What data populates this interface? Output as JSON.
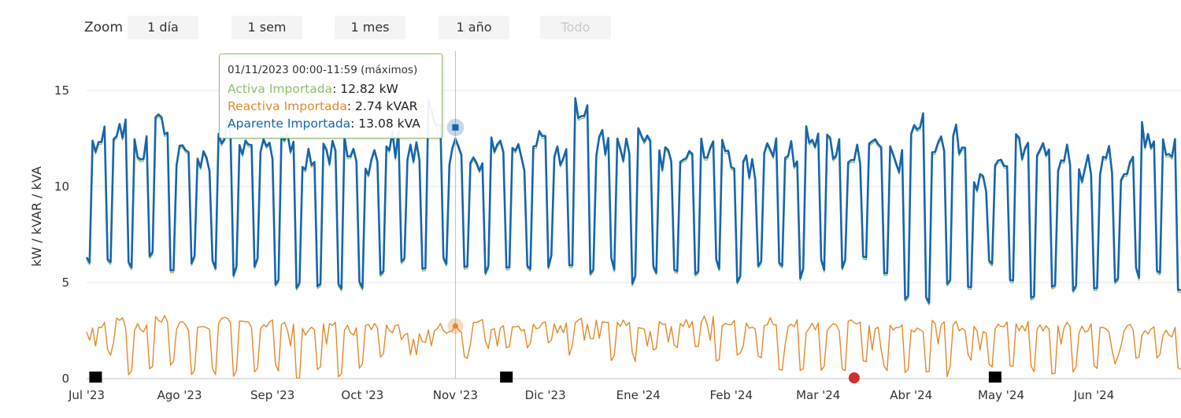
{
  "zoom": {
    "label": "Zoom",
    "buttons": [
      {
        "label": "1 día",
        "enabled": true
      },
      {
        "label": "1 sem",
        "enabled": true
      },
      {
        "label": "1 mes",
        "enabled": true
      },
      {
        "label": "1 año",
        "enabled": true
      },
      {
        "label": "Todo",
        "enabled": false
      }
    ]
  },
  "tooltip": {
    "header": "01/11/2023 00:00-11:59 (máximos)",
    "rows": [
      {
        "name": "Activa Importada",
        "value": ": 12.82 kW"
      },
      {
        "name": "Reactiva Importada",
        "value": ": 2.74 kVAR"
      },
      {
        "name": "Aparente Importada",
        "value": ": 13.08 kVA"
      }
    ]
  },
  "colors": {
    "activa": "#8dc06d",
    "reactiva": "#e08a2a",
    "aparente": "#1565ad",
    "marker_black": "#000000",
    "marker_red": "#d12f2f",
    "grid": "#e6e6e6"
  },
  "chart_data": {
    "type": "line",
    "ylabel": "kW / kVAR / kVA",
    "ylim": [
      0,
      15.5
    ],
    "yticks": [
      0,
      5,
      10,
      15
    ],
    "x_range": [
      "2023-07-01",
      "2024-06-30"
    ],
    "xticks": [
      {
        "label": "Jul '23",
        "date": "2023-07-01"
      },
      {
        "label": "Ago '23",
        "date": "2023-08-01"
      },
      {
        "label": "Sep '23",
        "date": "2023-09-01"
      },
      {
        "label": "Oct '23",
        "date": "2023-10-01"
      },
      {
        "label": "Nov '23",
        "date": "2023-11-01"
      },
      {
        "label": "Dic '23",
        "date": "2023-12-01"
      },
      {
        "label": "Ene '24",
        "date": "2024-01-01"
      },
      {
        "label": "Feb '24",
        "date": "2024-02-01"
      },
      {
        "label": "Mar '24",
        "date": "2024-03-01"
      },
      {
        "label": "Abr '24",
        "date": "2024-04-01"
      },
      {
        "label": "May '24",
        "date": "2024-05-01"
      },
      {
        "label": "Jun '24",
        "date": "2024-06-01"
      }
    ],
    "grid": true,
    "legend": "none",
    "crosshair_date": "2023-11-01",
    "highlight": {
      "date": "2023-11-01",
      "activa": 12.82,
      "reactiva": 2.74,
      "aparente": 13.08
    },
    "series": [
      {
        "key": "aparente",
        "name": "Aparente Importada",
        "unit": "kVA",
        "weekly_peak": [
          13.8,
          14.2,
          13.2,
          14.6,
          12.8,
          12.6,
          14.0,
          13.2,
          12.9,
          13.5,
          12.4,
          13.1,
          13.0,
          12.6,
          13.4,
          13.08,
          14.9,
          12.9,
          12.7,
          13.3,
          12.8,
          13.8,
          12.5,
          15.2,
          13.5,
          13.3,
          13.9,
          12.5,
          12.8,
          13.4,
          12.9,
          12.3,
          13.4,
          12.9,
          14.0,
          13.3,
          12.9,
          13.0,
          12.6,
          14.4,
          13.2,
          13.7,
          11.7,
          12.6,
          13.2,
          13.6,
          12.8,
          12.1,
          12.6,
          12.3,
          13.8,
          13.0,
          12.0
        ],
        "weekly_low": [
          5.8,
          5.5,
          5.6,
          6.0,
          5.3,
          5.6,
          5.5,
          5.3,
          5.5,
          4.9,
          4.3,
          4.4,
          4.2,
          4.5,
          4.9,
          5.9,
          5.4,
          5.5,
          5.3,
          5.4,
          5.5,
          5.3,
          5.7,
          5.8,
          5.3,
          5.5,
          4.7,
          5.3,
          5.3,
          5.1,
          5.5,
          5.0,
          5.3,
          5.4,
          5.2,
          5.5,
          5.5,
          5.7,
          5.1,
          4.1,
          3.6,
          4.5,
          4.6,
          5.6,
          4.9,
          4.2,
          4.2,
          4.3,
          4.6,
          4.7,
          5.2,
          5.4,
          4.4
        ]
      },
      {
        "key": "activa",
        "name": "Activa Importada",
        "unit": "kW",
        "weekly_peak": [
          13.6,
          14.0,
          13.0,
          14.4,
          12.6,
          12.4,
          13.8,
          13.0,
          12.7,
          13.3,
          12.2,
          12.9,
          12.8,
          12.4,
          13.2,
          12.82,
          14.7,
          12.7,
          12.5,
          13.1,
          12.6,
          13.6,
          12.3,
          15.0,
          13.3,
          13.1,
          13.7,
          12.3,
          12.6,
          13.2,
          12.7,
          12.1,
          13.2,
          12.7,
          13.8,
          13.1,
          12.7,
          12.8,
          12.4,
          14.2,
          13.0,
          13.5,
          11.5,
          12.4,
          13.0,
          13.4,
          12.6,
          11.9,
          12.4,
          12.1,
          13.6,
          12.8,
          11.8
        ],
        "weekly_low": [
          5.4,
          5.2,
          5.3,
          5.6,
          5.0,
          5.3,
          5.2,
          5.0,
          5.2,
          4.6,
          4.0,
          4.1,
          3.9,
          4.2,
          4.6,
          5.6,
          5.1,
          5.2,
          5.0,
          5.1,
          5.2,
          5.0,
          5.4,
          5.5,
          5.0,
          5.2,
          4.4,
          5.0,
          5.0,
          4.8,
          5.2,
          4.7,
          5.0,
          5.1,
          4.9,
          5.2,
          5.2,
          5.4,
          4.8,
          3.8,
          3.3,
          4.2,
          4.3,
          5.3,
          4.6,
          3.9,
          3.9,
          4.0,
          4.3,
          4.4,
          4.9,
          5.1,
          4.1
        ]
      },
      {
        "key": "reactiva",
        "name": "Reactiva Importada",
        "unit": "kVAR",
        "weekly_peak": [
          3.2,
          3.4,
          3.1,
          3.5,
          3.2,
          3.3,
          3.4,
          3.2,
          3.3,
          3.2,
          3.0,
          3.3,
          3.0,
          3.2,
          3.1,
          2.74,
          3.2,
          3.1,
          3.3,
          3.2,
          3.0,
          3.2,
          3.1,
          3.5,
          3.6,
          3.3,
          3.2,
          3.4,
          3.3,
          3.5,
          3.3,
          3.2,
          3.4,
          3.3,
          3.1,
          3.2,
          3.5,
          3.0,
          3.2,
          3.1,
          3.3,
          3.2,
          3.0,
          3.3,
          3.2,
          3.0,
          3.3,
          3.1,
          3.0,
          3.2,
          3.0,
          2.9,
          3.0
        ],
        "weekly_low": [
          1.9,
          1.2,
          0.2,
          0.1,
          0.4,
          0.1,
          0.2,
          0.0,
          0.1,
          0.3,
          0.0,
          0.1,
          0.0,
          0.2,
          0.9,
          2.0,
          1.8,
          2.1,
          0.8,
          1.5,
          1.6,
          1.4,
          1.7,
          1.2,
          1.5,
          0.9,
          0.8,
          1.3,
          1.5,
          1.1,
          0.6,
          1.2,
          0.8,
          0.2,
          0.3,
          0.1,
          0.1,
          0.6,
          0.3,
          0.0,
          0.2,
          0.1,
          0.7,
          0.5,
          0.6,
          0.1,
          0.2,
          0.3,
          0.4,
          0.6,
          0.8,
          1.0,
          0.2
        ]
      }
    ],
    "markers": [
      {
        "date": "2023-07-04",
        "shape": "square",
        "color": "marker_black"
      },
      {
        "date": "2023-11-18",
        "shape": "square",
        "color": "marker_black"
      },
      {
        "date": "2024-03-13",
        "shape": "circle",
        "color": "marker_red"
      },
      {
        "date": "2024-04-29",
        "shape": "square",
        "color": "marker_black"
      }
    ]
  }
}
